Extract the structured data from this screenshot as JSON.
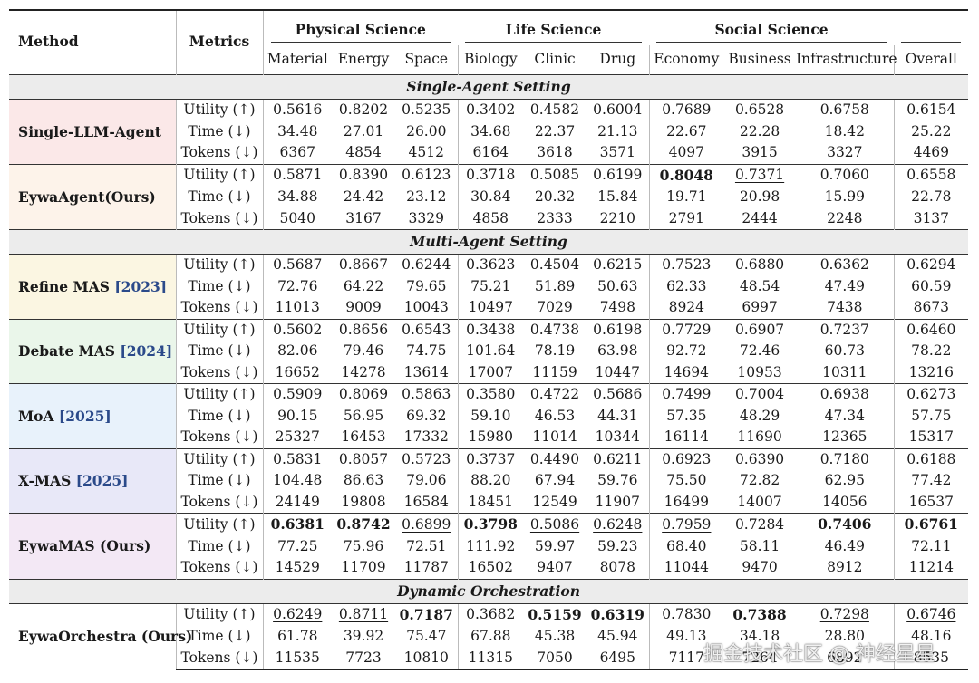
{
  "header": {
    "method": "Method",
    "metrics": "Metrics",
    "groups": [
      "Physical Science",
      "Life Science",
      "Social Science"
    ],
    "columns": [
      "Material",
      "Energy",
      "Space",
      "Biology",
      "Clinic",
      "Drug",
      "Economy",
      "Business",
      "Infrastructure",
      "Overall"
    ]
  },
  "colors": {
    "single_llm": "#fbe8e8",
    "eywa_agent": "#fdf3ea",
    "refine": "#fbf6e2",
    "debate": "#eaf6ea",
    "moa": "#e8f2fb",
    "xmas": "#e8e8f8",
    "eywa_mas": "#f3e8f5",
    "eywa_orch": "#ffffff",
    "section_bg": "#ececec",
    "ref_color": "#2b4a8a"
  },
  "sections": [
    {
      "title": "Single-Agent Setting",
      "methods": [
        {
          "name": "Single-LLM-Agent",
          "ref": "",
          "bg": "single_llm",
          "rows": [
            {
              "metric": "Utility (↑)",
              "values": [
                "0.5616",
                "0.8202",
                "0.5235",
                "0.3402",
                "0.4582",
                "0.6004",
                "0.7689",
                "0.6528",
                "0.6758",
                "0.6154"
              ],
              "styles": [
                "",
                "",
                "",
                "",
                "",
                "",
                "",
                "",
                "",
                ""
              ]
            },
            {
              "metric": "Time (↓)",
              "values": [
                "34.48",
                "27.01",
                "26.00",
                "34.68",
                "22.37",
                "21.13",
                "22.67",
                "22.28",
                "18.42",
                "25.22"
              ],
              "styles": [
                "",
                "",
                "",
                "",
                "",
                "",
                "",
                "",
                "",
                ""
              ]
            },
            {
              "metric": "Tokens (↓)",
              "values": [
                "6367",
                "4854",
                "4512",
                "6164",
                "3618",
                "3571",
                "4097",
                "3915",
                "3327",
                "4469"
              ],
              "styles": [
                "",
                "",
                "",
                "",
                "",
                "",
                "",
                "",
                "",
                ""
              ]
            }
          ]
        },
        {
          "name": "EywaAgent(Ours)",
          "ref": "",
          "bg": "eywa_agent",
          "rows": [
            {
              "metric": "Utility (↑)",
              "values": [
                "0.5871",
                "0.8390",
                "0.6123",
                "0.3718",
                "0.5085",
                "0.6199",
                "0.8048",
                "0.7371",
                "0.7060",
                "0.6558"
              ],
              "styles": [
                "",
                "",
                "",
                "",
                "",
                "",
                "b",
                "u",
                "",
                ""
              ]
            },
            {
              "metric": "Time (↓)",
              "values": [
                "34.88",
                "24.42",
                "23.12",
                "30.84",
                "20.32",
                "15.84",
                "19.71",
                "20.98",
                "15.99",
                "22.78"
              ],
              "styles": [
                "",
                "",
                "",
                "",
                "",
                "",
                "",
                "",
                "",
                ""
              ]
            },
            {
              "metric": "Tokens (↓)",
              "values": [
                "5040",
                "3167",
                "3329",
                "4858",
                "2333",
                "2210",
                "2791",
                "2444",
                "2248",
                "3137"
              ],
              "styles": [
                "",
                "",
                "",
                "",
                "",
                "",
                "",
                "",
                "",
                ""
              ]
            }
          ]
        }
      ]
    },
    {
      "title": "Multi-Agent Setting",
      "methods": [
        {
          "name": "Refine MAS ",
          "ref": "[2023]",
          "bg": "refine",
          "rows": [
            {
              "metric": "Utility (↑)",
              "values": [
                "0.5687",
                "0.8667",
                "0.6244",
                "0.3623",
                "0.4504",
                "0.6215",
                "0.7523",
                "0.6880",
                "0.6362",
                "0.6294"
              ],
              "styles": [
                "",
                "",
                "",
                "",
                "",
                "",
                "",
                "",
                "",
                ""
              ]
            },
            {
              "metric": "Time (↓)",
              "values": [
                "72.76",
                "64.22",
                "79.65",
                "75.21",
                "51.89",
                "50.63",
                "62.33",
                "48.54",
                "47.49",
                "60.59"
              ],
              "styles": [
                "",
                "",
                "",
                "",
                "",
                "",
                "",
                "",
                "",
                ""
              ]
            },
            {
              "metric": "Tokens (↓)",
              "values": [
                "11013",
                "9009",
                "10043",
                "10497",
                "7029",
                "7498",
                "8924",
                "6997",
                "7438",
                "8673"
              ],
              "styles": [
                "",
                "",
                "",
                "",
                "",
                "",
                "",
                "",
                "",
                ""
              ]
            }
          ]
        },
        {
          "name": "Debate MAS ",
          "ref": "[2024]",
          "bg": "debate",
          "rows": [
            {
              "metric": "Utility (↑)",
              "values": [
                "0.5602",
                "0.8656",
                "0.6543",
                "0.3438",
                "0.4738",
                "0.6198",
                "0.7729",
                "0.6907",
                "0.7237",
                "0.6460"
              ],
              "styles": [
                "",
                "",
                "",
                "",
                "",
                "",
                "",
                "",
                "",
                ""
              ]
            },
            {
              "metric": "Time (↓)",
              "values": [
                "82.06",
                "79.46",
                "74.75",
                "101.64",
                "78.19",
                "63.98",
                "92.72",
                "72.46",
                "60.73",
                "78.22"
              ],
              "styles": [
                "",
                "",
                "",
                "",
                "",
                "",
                "",
                "",
                "",
                ""
              ]
            },
            {
              "metric": "Tokens (↓)",
              "values": [
                "16652",
                "14278",
                "13614",
                "17007",
                "11159",
                "10447",
                "14694",
                "10953",
                "10311",
                "13216"
              ],
              "styles": [
                "",
                "",
                "",
                "",
                "",
                "",
                "",
                "",
                "",
                ""
              ]
            }
          ]
        },
        {
          "name": "MoA ",
          "ref": "[2025]",
          "bg": "moa",
          "rows": [
            {
              "metric": "Utility (↑)",
              "values": [
                "0.5909",
                "0.8069",
                "0.5863",
                "0.3580",
                "0.4722",
                "0.5686",
                "0.7499",
                "0.7004",
                "0.6938",
                "0.6273"
              ],
              "styles": [
                "",
                "",
                "",
                "",
                "",
                "",
                "",
                "",
                "",
                ""
              ]
            },
            {
              "metric": "Time (↓)",
              "values": [
                "90.15",
                "56.95",
                "69.32",
                "59.10",
                "46.53",
                "44.31",
                "57.35",
                "48.29",
                "47.34",
                "57.75"
              ],
              "styles": [
                "",
                "",
                "",
                "",
                "",
                "",
                "",
                "",
                "",
                ""
              ]
            },
            {
              "metric": "Tokens (↓)",
              "values": [
                "25327",
                "16453",
                "17332",
                "15980",
                "11014",
                "10344",
                "16114",
                "11690",
                "12365",
                "15317"
              ],
              "styles": [
                "",
                "",
                "",
                "",
                "",
                "",
                "",
                "",
                "",
                ""
              ]
            }
          ]
        },
        {
          "name": "X-MAS ",
          "ref": "[2025]",
          "bg": "xmas",
          "rows": [
            {
              "metric": "Utility (↑)",
              "values": [
                "0.5831",
                "0.8057",
                "0.5723",
                "0.3737",
                "0.4490",
                "0.6211",
                "0.6923",
                "0.6390",
                "0.7180",
                "0.6188"
              ],
              "styles": [
                "",
                "",
                "",
                "u",
                "",
                "",
                "",
                "",
                "",
                ""
              ]
            },
            {
              "metric": "Time (↓)",
              "values": [
                "104.48",
                "86.63",
                "79.06",
                "88.20",
                "67.94",
                "59.76",
                "75.50",
                "72.82",
                "62.95",
                "77.42"
              ],
              "styles": [
                "",
                "",
                "",
                "",
                "",
                "",
                "",
                "",
                "",
                ""
              ]
            },
            {
              "metric": "Tokens (↓)",
              "values": [
                "24149",
                "19808",
                "16584",
                "18451",
                "12549",
                "11907",
                "16499",
                "14007",
                "14056",
                "16537"
              ],
              "styles": [
                "",
                "",
                "",
                "",
                "",
                "",
                "",
                "",
                "",
                ""
              ]
            }
          ]
        },
        {
          "name": "EywaMAS (Ours)",
          "ref": "",
          "bg": "eywa_mas",
          "rows": [
            {
              "metric": "Utility (↑)",
              "values": [
                "0.6381",
                "0.8742",
                "0.6899",
                "0.3798",
                "0.5086",
                "0.6248",
                "0.7959",
                "0.7284",
                "0.7406",
                "0.6761"
              ],
              "styles": [
                "b",
                "b",
                "u",
                "b",
                "u",
                "u",
                "u",
                "",
                "b",
                "b"
              ]
            },
            {
              "metric": "Time (↓)",
              "values": [
                "77.25",
                "75.96",
                "72.51",
                "111.92",
                "59.97",
                "59.23",
                "68.40",
                "58.11",
                "46.49",
                "72.11"
              ],
              "styles": [
                "",
                "",
                "",
                "",
                "",
                "",
                "",
                "",
                "",
                ""
              ]
            },
            {
              "metric": "Tokens (↓)",
              "values": [
                "14529",
                "11709",
                "11787",
                "16502",
                "9407",
                "8078",
                "11044",
                "9470",
                "8912",
                "11214"
              ],
              "styles": [
                "",
                "",
                "",
                "",
                "",
                "",
                "",
                "",
                "",
                ""
              ]
            }
          ]
        }
      ]
    },
    {
      "title": "Dynamic Orchestration",
      "methods": [
        {
          "name": "EywaOrchestra (Ours)",
          "ref": "",
          "bg": "eywa_orch",
          "rows": [
            {
              "metric": "Utility (↑)",
              "values": [
                "0.6249",
                "0.8711",
                "0.7187",
                "0.3682",
                "0.5159",
                "0.6319",
                "0.7830",
                "0.7388",
                "0.7298",
                "0.6746"
              ],
              "styles": [
                "u",
                "u",
                "b",
                "",
                "b",
                "b",
                "",
                "b",
                "u",
                "u"
              ]
            },
            {
              "metric": "Time (↓)",
              "values": [
                "61.78",
                "39.92",
                "75.47",
                "67.88",
                "45.38",
                "45.94",
                "49.13",
                "34.18",
                "28.80",
                "48.16"
              ],
              "styles": [
                "",
                "",
                "",
                "",
                "",
                "",
                "",
                "",
                "",
                ""
              ]
            },
            {
              "metric": "Tokens (↓)",
              "values": [
                "11535",
                "7723",
                "10810",
                "11315",
                "7050",
                "6495",
                "7117",
                "7264",
                "6892",
                "8535"
              ],
              "styles": [
                "",
                "",
                "",
                "",
                "",
                "",
                "",
                "",
                "",
                ""
              ]
            }
          ]
        }
      ]
    }
  ],
  "watermark": "掘金技术社区 @ 神经星星"
}
